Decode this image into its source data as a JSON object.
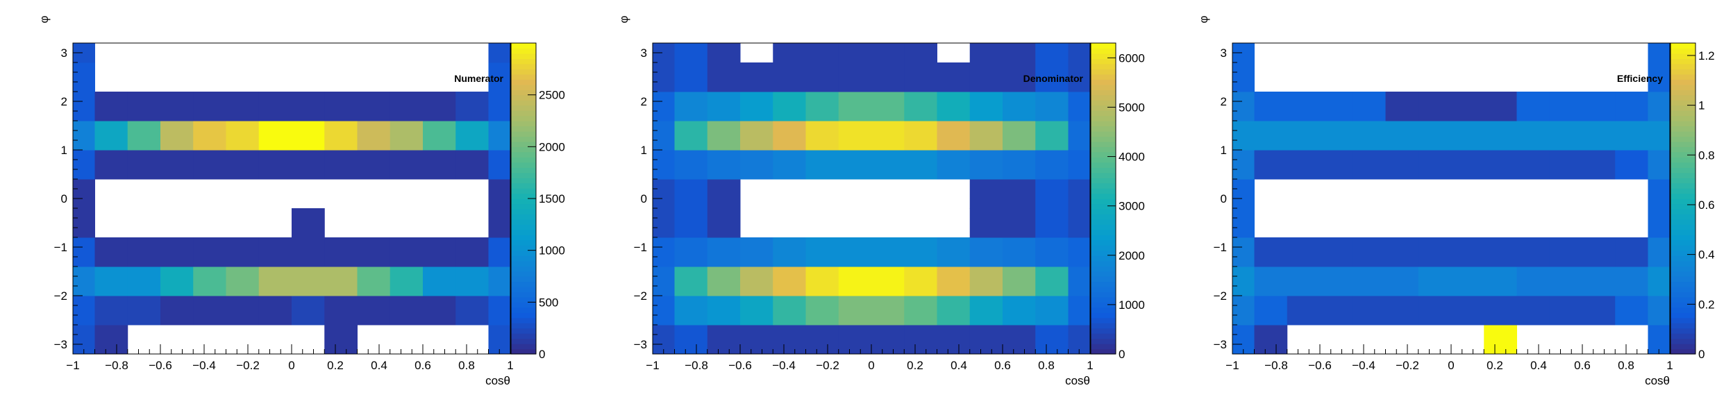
{
  "chart_data": [
    {
      "type": "heatmap",
      "title": "Numerator",
      "xlabel": "cosθ",
      "ylabel": "φ",
      "xlim": [
        -1,
        1
      ],
      "ylim": [
        -3.2,
        3.2
      ],
      "x_edges": [
        -1,
        -0.9,
        -0.75,
        -0.6,
        -0.45,
        -0.3,
        -0.15,
        0,
        0.15,
        0.3,
        0.45,
        0.6,
        0.75,
        0.9,
        1
      ],
      "y_edges": [
        -3.2,
        -2.6,
        -2.0,
        -1.4,
        -0.8,
        -0.2,
        0.4,
        1.0,
        1.6,
        2.2,
        2.8,
        3.2
      ],
      "zmin": 0,
      "zmax": 3000,
      "x_ticks": [
        -1,
        -0.8,
        -0.6,
        -0.4,
        -0.2,
        0,
        0.2,
        0.4,
        0.6,
        0.8,
        1
      ],
      "x_tick_labels": [
        "−1",
        "−0.8",
        "−0.6",
        "−0.4",
        "−0.2",
        "0",
        "0.2",
        "0.4",
        "0.6",
        "0.8",
        "1"
      ],
      "y_ticks": [
        -3,
        -2,
        -1,
        0,
        1,
        2,
        3
      ],
      "y_tick_labels": [
        "−3",
        "−2",
        "−1",
        "0",
        "1",
        "2",
        "3"
      ],
      "z_ticks": [
        0,
        500,
        1000,
        1500,
        2000,
        2500
      ],
      "z_tick_labels": [
        "0",
        "500",
        "1000",
        "1500",
        "2000",
        "2500"
      ],
      "values": [
        [
          300,
          100,
          0,
          0,
          0,
          0,
          0,
          0,
          100,
          0,
          0,
          0,
          0,
          300
        ],
        [
          350,
          200,
          200,
          100,
          100,
          100,
          100,
          200,
          100,
          100,
          100,
          100,
          200,
          350
        ],
        [
          800,
          1000,
          1000,
          1400,
          1800,
          2000,
          2300,
          2300,
          2300,
          1900,
          1600,
          1000,
          1000,
          800
        ],
        [
          350,
          100,
          100,
          100,
          100,
          100,
          100,
          100,
          100,
          100,
          100,
          100,
          100,
          350
        ],
        [
          100,
          0,
          0,
          0,
          0,
          0,
          0,
          100,
          0,
          0,
          0,
          0,
          0,
          100
        ],
        [
          100,
          0,
          0,
          0,
          0,
          0,
          0,
          0,
          0,
          0,
          0,
          0,
          0,
          100
        ],
        [
          350,
          100,
          100,
          100,
          100,
          100,
          100,
          100,
          100,
          100,
          100,
          100,
          100,
          350
        ],
        [
          800,
          1300,
          1800,
          2400,
          2700,
          2800,
          3000,
          3000,
          2800,
          2500,
          2300,
          1800,
          1300,
          800
        ],
        [
          350,
          100,
          100,
          100,
          100,
          100,
          100,
          100,
          100,
          100,
          100,
          100,
          200,
          350
        ],
        [
          350,
          0,
          0,
          0,
          0,
          0,
          0,
          0,
          0,
          0,
          0,
          0,
          0,
          350
        ],
        [
          300,
          0,
          0,
          0,
          0,
          0,
          0,
          0,
          0,
          0,
          0,
          0,
          0,
          300
        ]
      ]
    },
    {
      "type": "heatmap",
      "title": "Denominator",
      "xlabel": "cosθ",
      "ylabel": "φ",
      "xlim": [
        -1,
        1
      ],
      "ylim": [
        -3.2,
        3.2
      ],
      "x_edges": [
        -1,
        -0.9,
        -0.75,
        -0.6,
        -0.45,
        -0.3,
        -0.15,
        0,
        0.15,
        0.3,
        0.45,
        0.6,
        0.75,
        0.9,
        1
      ],
      "y_edges": [
        -3.2,
        -2.6,
        -2.0,
        -1.4,
        -0.8,
        -0.2,
        0.4,
        1.0,
        1.6,
        2.2,
        2.8,
        3.2
      ],
      "zmin": 0,
      "zmax": 6300,
      "x_ticks": [
        -1,
        -0.8,
        -0.6,
        -0.4,
        -0.2,
        0,
        0.2,
        0.4,
        0.6,
        0.8,
        1
      ],
      "x_tick_labels": [
        "−1",
        "−0.8",
        "−0.6",
        "−0.4",
        "−0.2",
        "0",
        "0.2",
        "0.4",
        "0.6",
        "0.8",
        "1"
      ],
      "y_ticks": [
        -3,
        -2,
        -1,
        0,
        1,
        2,
        3
      ],
      "y_tick_labels": [
        "−3",
        "−2",
        "−1",
        "0",
        "1",
        "2",
        "3"
      ],
      "z_ticks": [
        0,
        1000,
        2000,
        3000,
        4000,
        5000,
        6000
      ],
      "z_tick_labels": [
        "0",
        "1000",
        "2000",
        "3000",
        "4000",
        "5000",
        "6000"
      ],
      "values": [
        [
          500,
          700,
          300,
          300,
          300,
          300,
          300,
          300,
          300,
          300,
          300,
          300,
          700,
          500
        ],
        [
          1000,
          2000,
          2200,
          2700,
          3500,
          4000,
          4300,
          4300,
          4000,
          3500,
          2700,
          2200,
          2000,
          1000
        ],
        [
          1200,
          3400,
          4300,
          5000,
          5600,
          6000,
          6200,
          6200,
          6000,
          5600,
          5000,
          4300,
          3400,
          1200
        ],
        [
          1000,
          1200,
          1400,
          1500,
          1800,
          2000,
          2000,
          2000,
          2000,
          1800,
          1500,
          1400,
          1200,
          1000
        ],
        [
          500,
          700,
          300,
          0,
          0,
          0,
          0,
          0,
          0,
          0,
          300,
          300,
          700,
          500
        ],
        [
          500,
          700,
          300,
          0,
          0,
          0,
          0,
          0,
          0,
          0,
          300,
          300,
          700,
          500
        ],
        [
          1000,
          1200,
          1400,
          1500,
          1700,
          2000,
          2000,
          2000,
          2000,
          1700,
          1500,
          1400,
          1200,
          1000
        ],
        [
          1200,
          3400,
          4300,
          5000,
          5500,
          5900,
          6000,
          6000,
          5900,
          5500,
          5000,
          4300,
          3400,
          1200
        ],
        [
          1000,
          1800,
          2000,
          2400,
          3000,
          3500,
          3900,
          3900,
          3500,
          3000,
          2400,
          2000,
          1800,
          1000
        ],
        [
          500,
          700,
          300,
          300,
          300,
          300,
          300,
          300,
          300,
          300,
          300,
          300,
          700,
          500
        ],
        [
          500,
          700,
          300,
          0,
          300,
          300,
          300,
          300,
          300,
          0,
          300,
          300,
          700,
          500
        ]
      ]
    },
    {
      "type": "heatmap",
      "title": "Efficiency",
      "xlabel": "cosθ",
      "ylabel": "φ",
      "xlim": [
        -1,
        1
      ],
      "ylim": [
        -3.2,
        3.2
      ],
      "x_edges": [
        -1,
        -0.9,
        -0.75,
        -0.6,
        -0.45,
        -0.3,
        -0.15,
        0,
        0.15,
        0.3,
        0.45,
        0.6,
        0.75,
        0.9,
        1
      ],
      "y_edges": [
        -3.2,
        -2.6,
        -2.0,
        -1.4,
        -0.8,
        -0.2,
        0.4,
        1.0,
        1.6,
        2.2,
        2.8,
        3.2
      ],
      "zmin": 0,
      "zmax": 1.25,
      "x_ticks": [
        -1,
        -0.8,
        -0.6,
        -0.4,
        -0.2,
        0,
        0.2,
        0.4,
        0.6,
        0.8,
        1
      ],
      "x_tick_labels": [
        "−1",
        "−0.8",
        "−0.6",
        "−0.4",
        "−0.2",
        "0",
        "0.2",
        "0.4",
        "0.6",
        "0.8",
        "1"
      ],
      "y_ticks": [
        -3,
        -2,
        -1,
        0,
        1,
        2,
        3
      ],
      "y_tick_labels": [
        "−3",
        "−2",
        "−1",
        "0",
        "1",
        "2",
        "3"
      ],
      "z_ticks": [
        0,
        0.2,
        0.4,
        0.6,
        0.8,
        1,
        1.2
      ],
      "z_tick_labels": [
        "0",
        "0.2",
        "0.4",
        "0.6",
        "0.8",
        "1",
        "1.2"
      ],
      "values": [
        [
          0.2,
          0.05,
          0,
          0,
          0,
          0,
          0,
          0,
          1.25,
          0,
          0,
          0,
          0,
          0.2
        ],
        [
          0.3,
          0.2,
          0.1,
          0.1,
          0.1,
          0.1,
          0.1,
          0.1,
          0.1,
          0.1,
          0.1,
          0.1,
          0.2,
          0.3
        ],
        [
          0.4,
          0.3,
          0.3,
          0.3,
          0.3,
          0.3,
          0.35,
          0.35,
          0.35,
          0.3,
          0.3,
          0.3,
          0.3,
          0.4
        ],
        [
          0.3,
          0.1,
          0.1,
          0.1,
          0.1,
          0.1,
          0.1,
          0.1,
          0.1,
          0.1,
          0.1,
          0.1,
          0.1,
          0.3
        ],
        [
          0.2,
          0,
          0,
          0,
          0,
          0,
          0,
          0,
          0,
          0,
          0,
          0,
          0,
          0.2
        ],
        [
          0.2,
          0,
          0,
          0,
          0,
          0,
          0,
          0,
          0,
          0,
          0,
          0,
          0,
          0.2
        ],
        [
          0.3,
          0.1,
          0.1,
          0.1,
          0.1,
          0.1,
          0.1,
          0.1,
          0.1,
          0.1,
          0.1,
          0.1,
          0.15,
          0.3
        ],
        [
          0.4,
          0.4,
          0.4,
          0.4,
          0.4,
          0.4,
          0.4,
          0.4,
          0.4,
          0.4,
          0.4,
          0.4,
          0.4,
          0.4
        ],
        [
          0.3,
          0.2,
          0.2,
          0.2,
          0.2,
          0.05,
          0.05,
          0.05,
          0.05,
          0.2,
          0.2,
          0.2,
          0.2,
          0.3
        ],
        [
          0.2,
          0,
          0,
          0,
          0,
          0,
          0,
          0,
          0,
          0,
          0,
          0,
          0,
          0.2
        ],
        [
          0.2,
          0,
          0,
          0,
          0,
          0,
          0,
          0,
          0,
          0,
          0,
          0,
          0,
          0.2
        ]
      ]
    }
  ]
}
